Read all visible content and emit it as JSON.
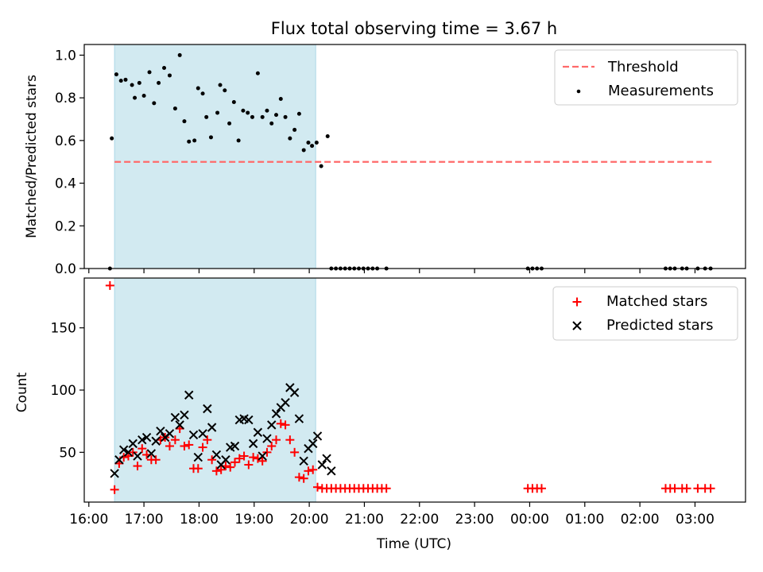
{
  "figure": {
    "title": "Flux total observing time = 3.67 h"
  },
  "colors": {
    "band": "#add8e6",
    "threshold": "#ff6a6a",
    "measurements": "#000000",
    "matched": "#ff0000",
    "predicted": "#000000"
  },
  "chart_data": [
    {
      "type": "scatter",
      "panel": "top",
      "xlabel": "",
      "ylabel": "Matched/Predicted stars",
      "xlim": [
        "15:55",
        "03:55"
      ],
      "ylim": [
        0,
        1.05
      ],
      "yticks": [
        0.0,
        0.2,
        0.4,
        0.6,
        0.8,
        1.0
      ],
      "ytick_labels": [
        "0.0",
        "0.2",
        "0.4",
        "0.6",
        "0.8",
        "1.0"
      ],
      "grid": false,
      "legend_position": "top-right",
      "shaded_interval": [
        "16:28",
        "20:07"
      ],
      "threshold": {
        "name": "Threshold",
        "y": 0.5,
        "x_range": [
          "16:28",
          "03:18"
        ]
      },
      "series": [
        {
          "name": "Measurements",
          "marker": "dot",
          "points": [
            [
              "16:23",
              0.0
            ],
            [
              "16:25",
              0.61
            ],
            [
              "16:30",
              0.91
            ],
            [
              "16:35",
              0.88
            ],
            [
              "16:40",
              0.885
            ],
            [
              "16:47",
              0.86
            ],
            [
              "16:50",
              0.8
            ],
            [
              "16:55",
              0.87
            ],
            [
              "17:00",
              0.81
            ],
            [
              "17:06",
              0.92
            ],
            [
              "17:11",
              0.775
            ],
            [
              "17:16",
              0.87
            ],
            [
              "17:22",
              0.94
            ],
            [
              "17:28",
              0.905
            ],
            [
              "17:34",
              0.75
            ],
            [
              "17:39",
              1.0
            ],
            [
              "17:44",
              0.69
            ],
            [
              "17:49",
              0.595
            ],
            [
              "17:55",
              0.6
            ],
            [
              "17:59",
              0.845
            ],
            [
              "18:04",
              0.82
            ],
            [
              "18:08",
              0.71
            ],
            [
              "18:13",
              0.615
            ],
            [
              "18:20",
              0.73
            ],
            [
              "18:23",
              0.86
            ],
            [
              "18:28",
              0.835
            ],
            [
              "18:33",
              0.68
            ],
            [
              "18:38",
              0.78
            ],
            [
              "18:43",
              0.6
            ],
            [
              "18:48",
              0.74
            ],
            [
              "18:53",
              0.73
            ],
            [
              "18:58",
              0.71
            ],
            [
              "19:04",
              0.915
            ],
            [
              "19:09",
              0.71
            ],
            [
              "19:14",
              0.74
            ],
            [
              "19:19",
              0.68
            ],
            [
              "19:24",
              0.72
            ],
            [
              "19:29",
              0.795
            ],
            [
              "19:34",
              0.71
            ],
            [
              "19:39",
              0.61
            ],
            [
              "19:44",
              0.65
            ],
            [
              "19:49",
              0.725
            ],
            [
              "19:54",
              0.555
            ],
            [
              "19:59",
              0.59
            ],
            [
              "20:03",
              0.575
            ],
            [
              "20:08",
              0.59
            ],
            [
              "20:13",
              0.48
            ],
            [
              "20:20",
              0.62
            ],
            [
              "20:24",
              0.0
            ],
            [
              "20:29",
              0.0
            ],
            [
              "20:34",
              0.0
            ],
            [
              "20:39",
              0.0
            ],
            [
              "20:44",
              0.0
            ],
            [
              "20:49",
              0.0
            ],
            [
              "20:54",
              0.0
            ],
            [
              "20:59",
              0.0
            ],
            [
              "21:04",
              0.0
            ],
            [
              "21:09",
              0.0
            ],
            [
              "21:14",
              0.0
            ],
            [
              "21:24",
              0.0
            ],
            [
              "23:58",
              0.0
            ],
            [
              "00:03",
              0.0
            ],
            [
              "00:08",
              0.0
            ],
            [
              "00:13",
              0.0
            ],
            [
              "02:28",
              0.0
            ],
            [
              "02:33",
              0.0
            ],
            [
              "02:38",
              0.0
            ],
            [
              "02:46",
              0.0
            ],
            [
              "02:51",
              0.0
            ],
            [
              "03:03",
              0.0
            ],
            [
              "03:11",
              0.0
            ],
            [
              "03:17",
              0.0
            ]
          ]
        }
      ]
    },
    {
      "type": "scatter",
      "panel": "bottom",
      "xlabel": "Time (UTC)",
      "ylabel": "Count",
      "xlim": [
        "15:55",
        "03:55"
      ],
      "ylim": [
        10,
        190
      ],
      "yticks": [
        50,
        100,
        150
      ],
      "ytick_labels": [
        "50",
        "100",
        "150"
      ],
      "xticks": [
        "16:00",
        "17:00",
        "18:00",
        "19:00",
        "20:00",
        "21:00",
        "22:00",
        "23:00",
        "00:00",
        "01:00",
        "02:00",
        "03:00"
      ],
      "xtick_labels": [
        "16:00",
        "17:00",
        "18:00",
        "19:00",
        "20:00",
        "21:00",
        "22:00",
        "23:00",
        "00:00",
        "01:00",
        "02:00",
        "03:00"
      ],
      "grid": false,
      "legend_position": "top-right",
      "shaded_interval": [
        "16:28",
        "20:07"
      ],
      "series": [
        {
          "name": "Matched stars",
          "marker": "plus",
          "points": [
            [
              "16:23",
              184
            ],
            [
              "16:28",
              20
            ],
            [
              "16:33",
              41
            ],
            [
              "16:38",
              46
            ],
            [
              "16:43",
              47
            ],
            [
              "16:48",
              50
            ],
            [
              "16:53",
              39
            ],
            [
              "16:58",
              53
            ],
            [
              "17:03",
              48
            ],
            [
              "17:08",
              44
            ],
            [
              "17:13",
              44
            ],
            [
              "17:18",
              60
            ],
            [
              "17:23",
              62
            ],
            [
              "17:28",
              55
            ],
            [
              "17:34",
              60
            ],
            [
              "17:39",
              69
            ],
            [
              "17:44",
              55
            ],
            [
              "17:49",
              56
            ],
            [
              "17:54",
              37
            ],
            [
              "17:59",
              37
            ],
            [
              "18:04",
              54
            ],
            [
              "18:09",
              60
            ],
            [
              "18:14",
              44
            ],
            [
              "18:19",
              35
            ],
            [
              "18:24",
              36
            ],
            [
              "18:29",
              39
            ],
            [
              "18:34",
              38
            ],
            [
              "18:39",
              42
            ],
            [
              "18:44",
              45
            ],
            [
              "18:49",
              47
            ],
            [
              "18:54",
              40
            ],
            [
              "18:59",
              46
            ],
            [
              "19:04",
              45
            ],
            [
              "19:09",
              43
            ],
            [
              "19:14",
              50
            ],
            [
              "19:19",
              55
            ],
            [
              "19:24",
              60
            ],
            [
              "19:29",
              73
            ],
            [
              "19:34",
              72
            ],
            [
              "19:39",
              60
            ],
            [
              "19:44",
              50
            ],
            [
              "19:49",
              30
            ],
            [
              "19:54",
              29
            ],
            [
              "19:59",
              35
            ],
            [
              "20:04",
              36
            ],
            [
              "20:09",
              22
            ],
            [
              "20:14",
              21
            ],
            [
              "20:19",
              21
            ],
            [
              "20:24",
              21
            ],
            [
              "20:29",
              21
            ],
            [
              "20:34",
              21
            ],
            [
              "20:39",
              21
            ],
            [
              "20:44",
              21
            ],
            [
              "20:49",
              21
            ],
            [
              "20:54",
              21
            ],
            [
              "20:59",
              21
            ],
            [
              "21:04",
              21
            ],
            [
              "21:09",
              21
            ],
            [
              "21:14",
              21
            ],
            [
              "21:19",
              21
            ],
            [
              "21:24",
              21
            ],
            [
              "23:58",
              21
            ],
            [
              "00:03",
              21
            ],
            [
              "00:08",
              21
            ],
            [
              "00:13",
              21
            ],
            [
              "02:28",
              21
            ],
            [
              "02:33",
              21
            ],
            [
              "02:38",
              21
            ],
            [
              "02:46",
              21
            ],
            [
              "02:51",
              21
            ],
            [
              "03:03",
              21
            ],
            [
              "03:11",
              21
            ],
            [
              "03:17",
              21
            ]
          ]
        },
        {
          "name": "Predicted stars",
          "marker": "x",
          "points": [
            [
              "16:28",
              33
            ],
            [
              "16:33",
              44
            ],
            [
              "16:38",
              52
            ],
            [
              "16:43",
              50
            ],
            [
              "16:48",
              57
            ],
            [
              "16:53",
              47
            ],
            [
              "16:58",
              60
            ],
            [
              "17:03",
              62
            ],
            [
              "17:08",
              49
            ],
            [
              "17:13",
              59
            ],
            [
              "17:18",
              67
            ],
            [
              "17:23",
              62
            ],
            [
              "17:28",
              65
            ],
            [
              "17:34",
              78
            ],
            [
              "17:39",
              72
            ],
            [
              "17:44",
              80
            ],
            [
              "17:49",
              96
            ],
            [
              "17:54",
              64
            ],
            [
              "17:59",
              46
            ],
            [
              "18:04",
              65
            ],
            [
              "18:09",
              85
            ],
            [
              "18:14",
              70
            ],
            [
              "18:19",
              48
            ],
            [
              "18:24",
              40
            ],
            [
              "18:29",
              44
            ],
            [
              "18:34",
              54
            ],
            [
              "18:39",
              55
            ],
            [
              "18:44",
              76
            ],
            [
              "18:49",
              77
            ],
            [
              "18:54",
              76
            ],
            [
              "18:59",
              57
            ],
            [
              "19:04",
              66
            ],
            [
              "19:09",
              47
            ],
            [
              "19:14",
              61
            ],
            [
              "19:19",
              72
            ],
            [
              "19:24",
              81
            ],
            [
              "19:29",
              86
            ],
            [
              "19:34",
              90
            ],
            [
              "19:39",
              102
            ],
            [
              "19:44",
              98
            ],
            [
              "19:49",
              77
            ],
            [
              "19:54",
              43
            ],
            [
              "19:59",
              53
            ],
            [
              "20:04",
              57
            ],
            [
              "20:09",
              63
            ],
            [
              "20:14",
              40
            ],
            [
              "20:19",
              45
            ],
            [
              "20:24",
              35
            ]
          ]
        }
      ]
    }
  ]
}
